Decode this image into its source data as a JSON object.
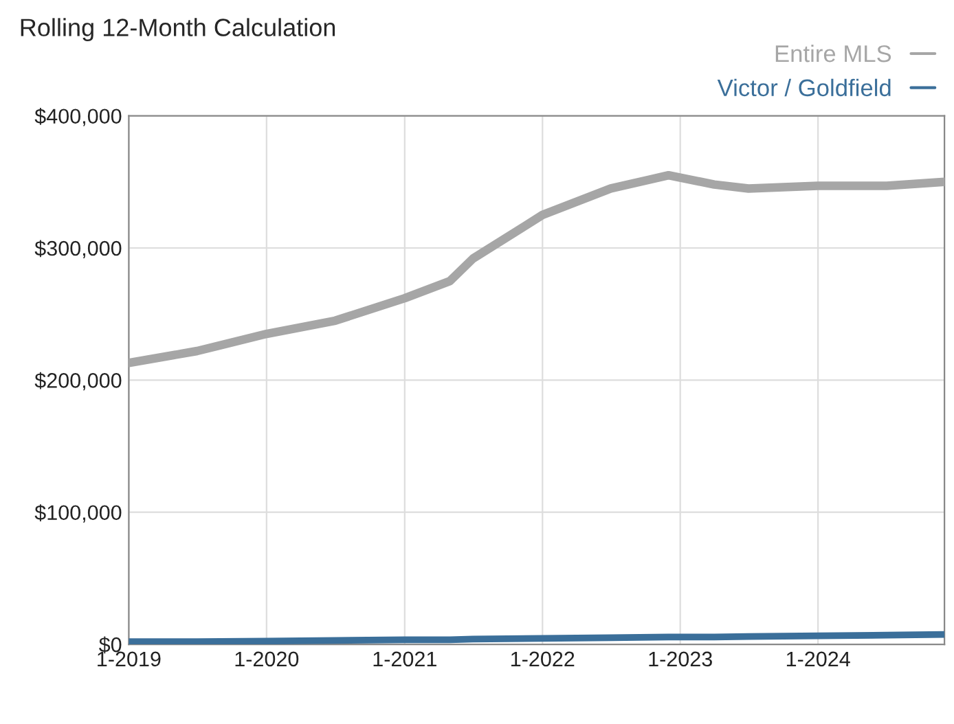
{
  "chart_data": {
    "type": "line",
    "title": "Rolling 12-Month Calculation",
    "x": [
      "2019-01",
      "2019-07",
      "2020-01",
      "2020-07",
      "2021-01",
      "2021-05",
      "2021-07",
      "2022-01",
      "2022-07",
      "2022-12",
      "2023-04",
      "2023-07",
      "2024-01",
      "2024-07",
      "2024-12"
    ],
    "series": [
      {
        "name": "Entire MLS",
        "color": "#a6a6a6",
        "values": [
          213000,
          222000,
          235000,
          245000,
          262000,
          275000,
          292000,
          325000,
          345000,
          355000,
          348000,
          345000,
          347000,
          347000,
          350000
        ]
      },
      {
        "name": "Victor / Goldfield",
        "color": "#3b6f9a",
        "values": [
          2000,
          2000,
          2500,
          3000,
          3500,
          3500,
          4000,
          4500,
          5000,
          5500,
          5500,
          6000,
          6500,
          7000,
          7500
        ]
      }
    ],
    "xlim": [
      "2019-01",
      "2024-12"
    ],
    "xticks": [
      {
        "value": "2019-01",
        "label": "1-2019"
      },
      {
        "value": "2020-01",
        "label": "1-2020"
      },
      {
        "value": "2021-01",
        "label": "1-2021"
      },
      {
        "value": "2022-01",
        "label": "1-2022"
      },
      {
        "value": "2023-01",
        "label": "1-2023"
      },
      {
        "value": "2024-01",
        "label": "1-2024"
      }
    ],
    "ylim": [
      0,
      400000
    ],
    "yticks": [
      {
        "value": 0,
        "label": "$0"
      },
      {
        "value": 100000,
        "label": "$100,000"
      },
      {
        "value": 200000,
        "label": "$200,000"
      },
      {
        "value": 300000,
        "label": "$300,000"
      },
      {
        "value": 400000,
        "label": "$400,000"
      }
    ],
    "grid": true,
    "legend": "top right",
    "line_style": "solid",
    "marker": "none"
  }
}
